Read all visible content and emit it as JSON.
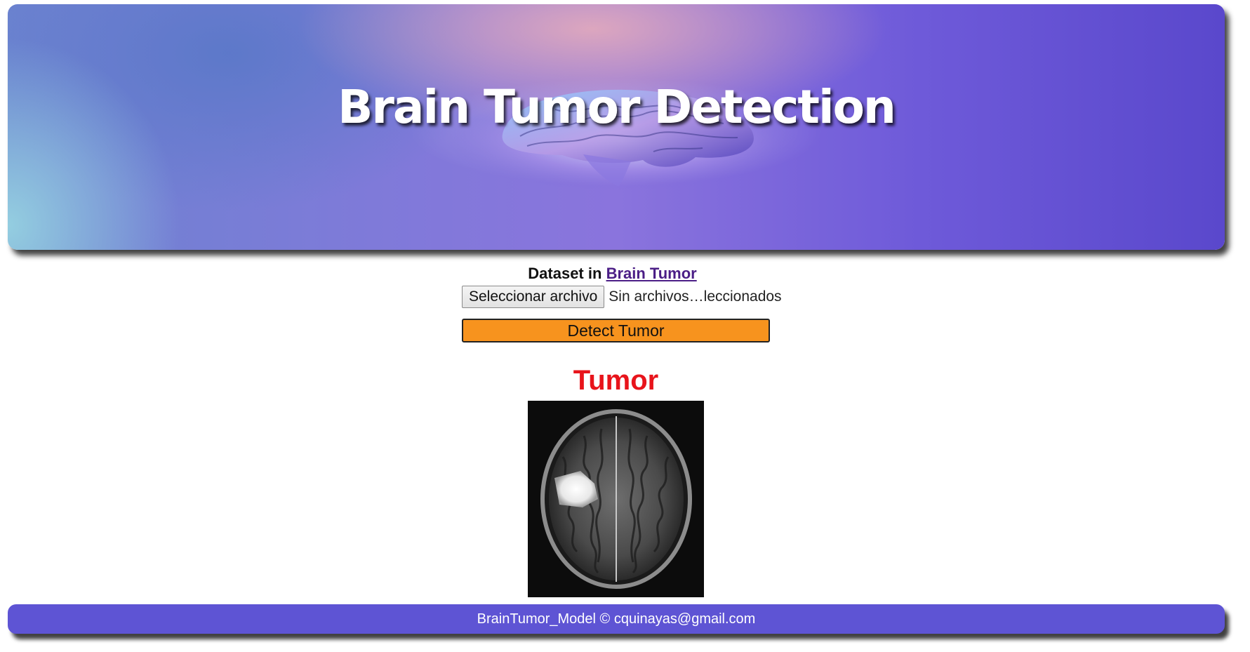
{
  "header": {
    "title": "Brain Tumor Detection"
  },
  "dataset": {
    "prefix": "Dataset in",
    "link_label": "Brain Tumor"
  },
  "file_input": {
    "button_label": "Seleccionar archivo",
    "status_text": "Sin archivos…leccionados"
  },
  "detect_button": {
    "label": "Detect Tumor"
  },
  "result": {
    "label": "Tumor"
  },
  "footer": {
    "text": "BrainTumor_Model © cquinayas@gmail.com"
  },
  "colors": {
    "banner_accent": "#6e5ad9",
    "detect_button": "#f7931e",
    "result_label": "#e8141b",
    "footer_bg": "#5e54d4",
    "link": "#4b1e86"
  }
}
